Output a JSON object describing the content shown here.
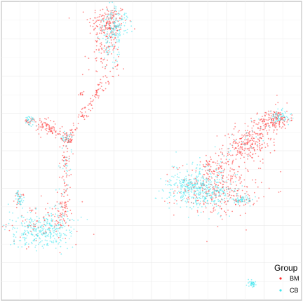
{
  "chart_data": {
    "type": "scatter",
    "xlim": [
      0,
      100
    ],
    "ylim": [
      0,
      100
    ],
    "grid": true,
    "legend_position": "bottom-right",
    "legend": {
      "title": "Group",
      "entries": [
        {
          "label": "BM",
          "color": "#ff2a2a"
        },
        {
          "label": "CB",
          "color": "#3ee6ee"
        }
      ]
    },
    "series": [
      {
        "name": "BM",
        "color": "#ff2a2a",
        "clusters": [
          {
            "x": 35.5,
            "y": 93,
            "sx": 3.2,
            "sy": 3,
            "n": 160
          },
          {
            "x": 35,
            "y": 85.5,
            "sx": 2.2,
            "sy": 3.8,
            "n": 70
          },
          {
            "x": 34,
            "y": 78,
            "sx": 2.8,
            "sy": 3,
            "n": 35
          },
          {
            "x": 26.5,
            "y": 69,
            "sx": 0.6,
            "sy": 0.8,
            "n": 10
          },
          {
            "x": 9.5,
            "y": 60,
            "sx": 0.6,
            "sy": 0.8,
            "n": 15
          },
          {
            "x": 15,
            "y": 58,
            "sx": 2.5,
            "sy": 1.5,
            "n": 40
          },
          {
            "x": 22,
            "y": 54.5,
            "sx": 0.9,
            "sy": 0.9,
            "n": 25
          },
          {
            "x": 14,
            "y": 26,
            "sx": 6,
            "sy": 3.5,
            "n": 90
          },
          {
            "x": 6,
            "y": 34,
            "sx": 0.8,
            "sy": 1.2,
            "n": 15
          },
          {
            "x": 72,
            "y": 37,
            "sx": 7,
            "sy": 4.5,
            "n": 280
          },
          {
            "x": 82,
            "y": 52,
            "sx": 4,
            "sy": 3,
            "n": 140
          },
          {
            "x": 91,
            "y": 60.5,
            "sx": 2.5,
            "sy": 1.6,
            "n": 120
          },
          {
            "x": 80,
            "y": 34,
            "sx": 2,
            "sy": 1.2,
            "n": 25
          }
        ],
        "paths": [
          {
            "from": [
              35,
              74
            ],
            "to": [
              22,
              54
            ],
            "n": 90,
            "spread": 0.8
          },
          {
            "from": [
              10,
              61
            ],
            "to": [
              22,
              54
            ],
            "n": 50,
            "spread": 0.7
          },
          {
            "from": [
              22,
              54
            ],
            "to": [
              20,
              24
            ],
            "n": 110,
            "spread": 0.9
          },
          {
            "from": [
              68,
              42
            ],
            "to": [
              93,
              62
            ],
            "n": 200,
            "spread": 2.2
          }
        ]
      },
      {
        "name": "CB",
        "color": "#3ee6ee",
        "clusters": [
          {
            "x": 38,
            "y": 92,
            "sx": 2.2,
            "sy": 3,
            "n": 140
          },
          {
            "x": 36.5,
            "y": 84,
            "sx": 1.6,
            "sy": 3,
            "n": 40
          },
          {
            "x": 9.5,
            "y": 60,
            "sx": 0.8,
            "sy": 0.9,
            "n": 30
          },
          {
            "x": 22,
            "y": 54.5,
            "sx": 0.9,
            "sy": 0.9,
            "n": 20
          },
          {
            "x": 6,
            "y": 34,
            "sx": 1,
            "sy": 1.6,
            "n": 40
          },
          {
            "x": 13.5,
            "y": 23.5,
            "sx": 5.5,
            "sy": 3,
            "n": 330
          },
          {
            "x": 64,
            "y": 38,
            "sx": 5,
            "sy": 3.2,
            "n": 320
          },
          {
            "x": 70,
            "y": 35.5,
            "sx": 5,
            "sy": 3,
            "n": 160
          },
          {
            "x": 80,
            "y": 33.5,
            "sx": 1.8,
            "sy": 0.9,
            "n": 50
          },
          {
            "x": 93,
            "y": 61.5,
            "sx": 1.6,
            "sy": 1.3,
            "n": 60
          },
          {
            "x": 83.5,
            "y": 5.5,
            "sx": 0.6,
            "sy": 0.6,
            "n": 40
          }
        ],
        "paths": [
          {
            "from": [
              22,
              54
            ],
            "to": [
              20,
              25
            ],
            "n": 40,
            "spread": 1.0
          },
          {
            "from": [
              68,
              42
            ],
            "to": [
              93,
              62
            ],
            "n": 40,
            "spread": 2.2
          }
        ]
      }
    ]
  }
}
